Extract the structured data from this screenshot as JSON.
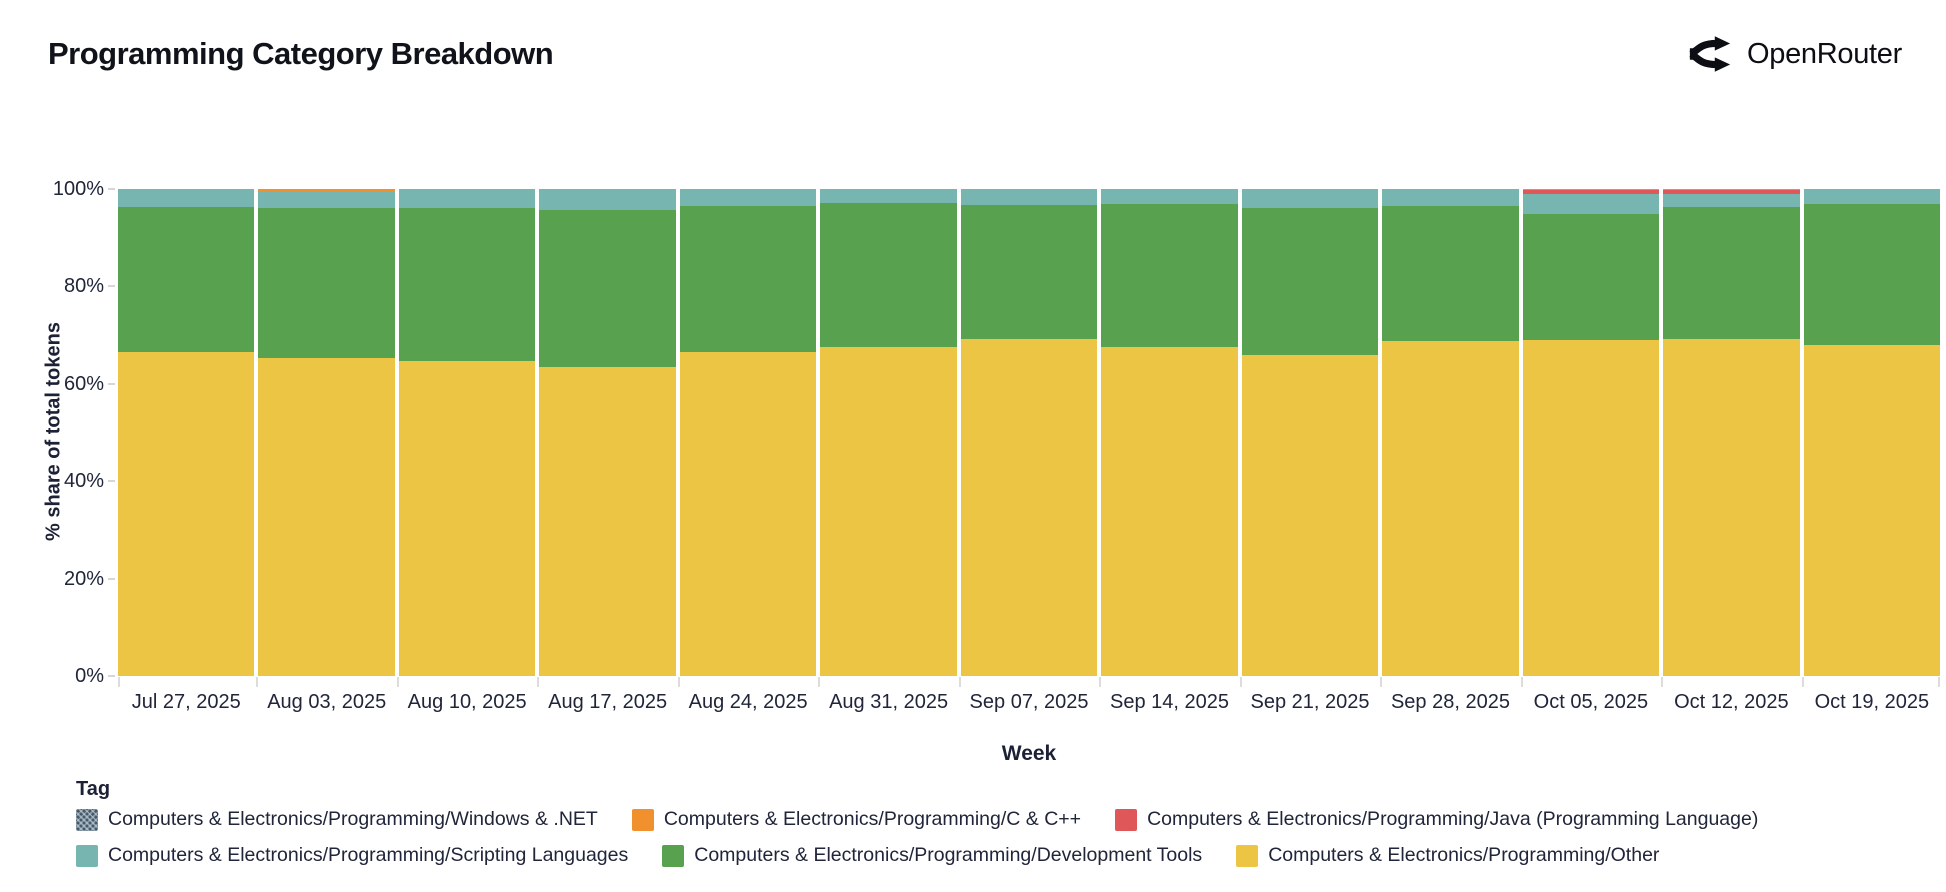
{
  "header": {
    "title": "Programming Category Breakdown",
    "brand": "OpenRouter"
  },
  "chart_data": {
    "type": "bar",
    "stacked": true,
    "normalized": "percent",
    "title": "Programming Category Breakdown",
    "xlabel": "Week",
    "ylabel": "% share of total tokens",
    "ylim": [
      0,
      100
    ],
    "grid": false,
    "legend_position": "bottom",
    "legend_title": "Tag",
    "yticks": [
      {
        "label": "0%",
        "value": 0
      },
      {
        "label": "20%",
        "value": 20
      },
      {
        "label": "40%",
        "value": 40
      },
      {
        "label": "60%",
        "value": 60
      },
      {
        "label": "80%",
        "value": 80
      },
      {
        "label": "100%",
        "value": 100
      }
    ],
    "categories": [
      "Jul 27, 2025",
      "Aug 03, 2025",
      "Aug 10, 2025",
      "Aug 17, 2025",
      "Aug 24, 2025",
      "Aug 31, 2025",
      "Sep 07, 2025",
      "Sep 14, 2025",
      "Sep 21, 2025",
      "Sep 28, 2025",
      "Oct 05, 2025",
      "Oct 12, 2025",
      "Oct 19, 2025"
    ],
    "series": [
      {
        "name": "Computers & Electronics/Programming/Other",
        "color": "#ECC545",
        "hatch": false,
        "values": [
          66.5,
          65.2,
          64.6,
          63.4,
          66.5,
          67.5,
          69.1,
          67.5,
          66.0,
          68.7,
          69.0,
          69.2,
          67.9
        ]
      },
      {
        "name": "Computers & Electronics/Programming/Development Tools",
        "color": "#58A14E",
        "hatch": false,
        "values": [
          29.9,
          31.0,
          31.6,
          32.2,
          30.0,
          29.7,
          27.7,
          29.4,
          30.2,
          27.8,
          25.8,
          27.1,
          29.0
        ]
      },
      {
        "name": "Computers & Electronics/Programming/Scripting Languages",
        "color": "#76B5B0",
        "hatch": false,
        "values": [
          3.5,
          3.4,
          3.5,
          4.2,
          3.4,
          2.7,
          3.1,
          3.0,
          3.7,
          3.2,
          4.1,
          2.6,
          2.9
        ]
      },
      {
        "name": "Computers & Electronics/Programming/Java (Programming Language)",
        "color": "#E05759",
        "hatch": false,
        "values": [
          0,
          0,
          0,
          0,
          0,
          0,
          0,
          0,
          0,
          0,
          1.0,
          1.0,
          0
        ]
      },
      {
        "name": "Computers & Electronics/Programming/C & C++",
        "color": "#F0912D",
        "hatch": false,
        "values": [
          0.1,
          0.4,
          0.3,
          0.2,
          0.1,
          0.1,
          0.1,
          0.1,
          0.1,
          0.3,
          0.1,
          0.1,
          0.2
        ]
      },
      {
        "name": "Computers & Electronics/Programming/Windows & .NET",
        "color": "#46586A",
        "hatch": true,
        "values": [
          0,
          0,
          0,
          0,
          0,
          0,
          0,
          0,
          0,
          0,
          0,
          0,
          0
        ]
      }
    ]
  },
  "legend": {
    "title": "Tag",
    "rows": [
      [
        {
          "label": "Computers & Electronics/Programming/Windows & .NET",
          "color": "#46586A",
          "hatch": true
        },
        {
          "label": "Computers & Electronics/Programming/C & C++",
          "color": "#F0912D",
          "hatch": false
        },
        {
          "label": "Computers & Electronics/Programming/Java (Programming Language)",
          "color": "#E05759",
          "hatch": false
        }
      ],
      [
        {
          "label": "Computers & Electronics/Programming/Scripting Languages",
          "color": "#76B5B0",
          "hatch": false
        },
        {
          "label": "Computers & Electronics/Programming/Development Tools",
          "color": "#58A14E",
          "hatch": false
        },
        {
          "label": "Computers & Electronics/Programming/Other",
          "color": "#ECC545",
          "hatch": false
        }
      ]
    ]
  }
}
